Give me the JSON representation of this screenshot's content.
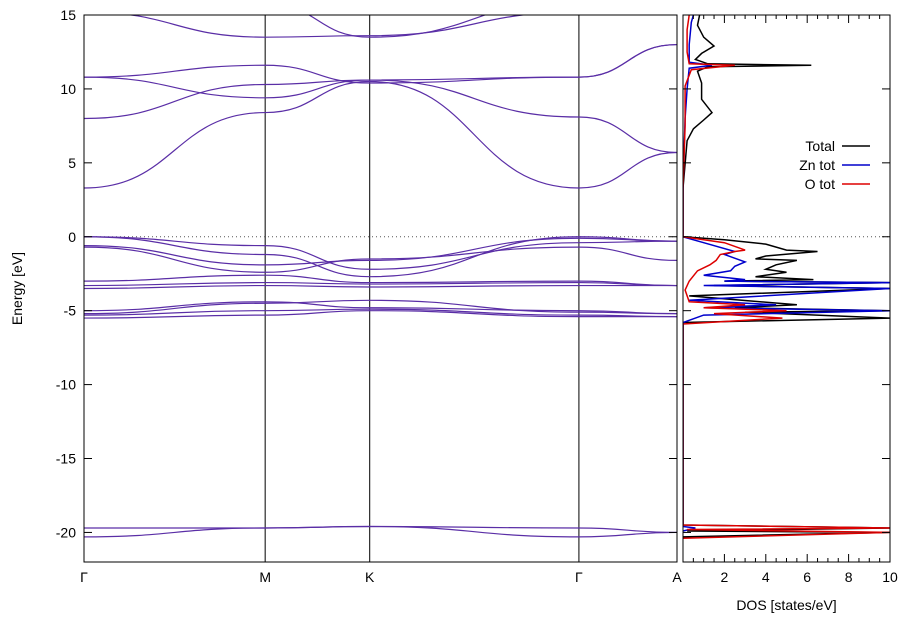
{
  "chart_data": [
    {
      "type": "line",
      "title": "",
      "ylabel": "Energy [eV]",
      "xlabel": "",
      "ylim": [
        -22,
        15
      ],
      "yticks": [
        15,
        10,
        5,
        0,
        -5,
        -10,
        -15,
        -20
      ],
      "ytick_labels": [
        "15",
        "10",
        "5",
        "0",
        "-5",
        "-10",
        "-15",
        "-20"
      ],
      "kpoints": [
        {
          "label": "Γ",
          "x": 0.0
        },
        {
          "label": "M",
          "x": 0.3055
        },
        {
          "label": "K",
          "x": 0.4818
        },
        {
          "label": "Γ",
          "x": 0.8346
        },
        {
          "label": "A",
          "x": 1.0
        }
      ],
      "fermi_level": 0,
      "line_color": "#5a2ea6",
      "bands": [
        {
          "x": [
            0,
            0.3055,
            0.4818,
            0.8346,
            1.0
          ],
          "y": [
            -20.3,
            -19.7,
            -19.6,
            -20.3,
            -20.0
          ]
        },
        {
          "x": [
            0,
            0.3055,
            0.4818,
            0.8346,
            1.0
          ],
          "y": [
            -19.7,
            -19.7,
            -19.6,
            -19.7,
            -20.0
          ]
        },
        {
          "x": [
            0,
            0.3055,
            0.4818,
            0.8346,
            1.0
          ],
          "y": [
            -5.5,
            -5.3,
            -5.0,
            -5.4,
            -5.4
          ]
        },
        {
          "x": [
            0,
            0.3055,
            0.4818,
            0.8346,
            1.0
          ],
          "y": [
            -5.3,
            -5.0,
            -4.9,
            -5.3,
            -5.4
          ]
        },
        {
          "x": [
            0,
            0.3055,
            0.4818,
            0.8346,
            1.0
          ],
          "y": [
            -5.2,
            -4.5,
            -4.3,
            -5.1,
            -5.2
          ]
        },
        {
          "x": [
            0,
            0.3055,
            0.4818,
            0.8346,
            1.0
          ],
          "y": [
            -5.0,
            -4.4,
            -4.8,
            -5.0,
            -5.2
          ]
        },
        {
          "x": [
            0,
            0.3055,
            0.4818,
            0.8346,
            1.0
          ],
          "y": [
            -3.5,
            -3.3,
            -3.4,
            -3.3,
            -3.3
          ]
        },
        {
          "x": [
            0,
            0.3055,
            0.4818,
            0.8346,
            1.0
          ],
          "y": [
            -3.3,
            -3.1,
            -3.2,
            -3.1,
            -3.3
          ]
        },
        {
          "x": [
            0,
            0.3055,
            0.4818,
            0.8346,
            1.0
          ],
          "y": [
            -3.0,
            -2.6,
            -3.1,
            -3.0,
            -3.3
          ]
        },
        {
          "x": [
            0,
            0.3055,
            0.4818,
            0.8346,
            1.0
          ],
          "y": [
            -0.7,
            -2.4,
            -1.5,
            -0.7,
            -1.6
          ]
        },
        {
          "x": [
            0,
            0.3055,
            0.4818,
            0.8346,
            1.0
          ],
          "y": [
            -0.6,
            -1.9,
            -1.6,
            -0.1,
            -0.3
          ]
        },
        {
          "x": [
            0,
            0.3055,
            0.4818,
            0.8346,
            1.0
          ],
          "y": [
            0.0,
            -1.2,
            -2.7,
            0.0,
            -0.3
          ]
        },
        {
          "x": [
            0,
            0.3055,
            0.4818,
            0.8346,
            1.0
          ],
          "y": [
            0.0,
            -0.6,
            -2.2,
            -0.4,
            -0.3
          ]
        },
        {
          "x": [
            0,
            0.3055,
            0.4818,
            0.8346,
            1.0
          ],
          "y": [
            3.3,
            8.4,
            10.5,
            3.3,
            5.7
          ]
        },
        {
          "x": [
            0,
            0.3055,
            0.4818,
            0.8346,
            1.0
          ],
          "y": [
            8.0,
            10.3,
            10.6,
            8.1,
            5.7
          ]
        },
        {
          "x": [
            0,
            0.3055,
            0.4818,
            0.8346,
            1.0
          ],
          "y": [
            10.8,
            9.4,
            10.6,
            10.8,
            13.0
          ]
        },
        {
          "x": [
            0,
            0.3055,
            0.4818,
            0.8346,
            1.0
          ],
          "y": [
            10.8,
            11.6,
            10.4,
            10.8,
            13.0
          ]
        },
        {
          "x": [
            0,
            0.3055,
            0.4818,
            0.8346,
            1.0
          ],
          "y": [
            15.2,
            13.5,
            13.6,
            15.2,
            15.2
          ]
        },
        {
          "x": [
            0,
            0.3055,
            0.4818,
            0.8346,
            1.0
          ],
          "y": [
            15.5,
            15.8,
            13.5,
            16.0,
            15.5
          ]
        }
      ]
    },
    {
      "type": "line",
      "title": "",
      "xlabel": "DOS [states/eV]",
      "ylabel": "",
      "xlim": [
        0,
        10
      ],
      "ylim": [
        -22,
        15
      ],
      "xticks": [
        2,
        4,
        6,
        8,
        10
      ],
      "xtick_labels": [
        "2",
        "4",
        "6",
        "8",
        "10"
      ],
      "legend_position": "right",
      "series": [
        {
          "name": "Total",
          "color": "#000000",
          "points": [
            [
              0,
              3.3
            ],
            [
              0.2,
              6.5
            ],
            [
              0.5,
              7.3
            ],
            [
              1,
              7.9
            ],
            [
              1.4,
              8.4
            ],
            [
              0.9,
              9.3
            ],
            [
              0.9,
              10.4
            ],
            [
              0.7,
              11.2
            ],
            [
              1.2,
              11.5
            ],
            [
              6.2,
              11.6
            ],
            [
              1.2,
              11.7
            ],
            [
              0.6,
              12.0
            ],
            [
              0.9,
              12.4
            ],
            [
              1.5,
              12.9
            ],
            [
              1.0,
              13.5
            ],
            [
              0.7,
              14.3
            ],
            [
              0.8,
              15.0
            ],
            [
              0,
              0
            ],
            [
              2,
              -0.2
            ],
            [
              4,
              -0.5
            ],
            [
              5,
              -0.9
            ],
            [
              6.5,
              -1.0
            ],
            [
              4,
              -1.3
            ],
            [
              3.5,
              -1.5
            ],
            [
              5.5,
              -1.6
            ],
            [
              4.5,
              -1.9
            ],
            [
              4,
              -2.2
            ],
            [
              5,
              -2.4
            ],
            [
              3.5,
              -2.7
            ],
            [
              6.3,
              -2.9
            ],
            [
              2,
              -3.0
            ],
            [
              10,
              -3.1
            ],
            [
              1.5,
              -3.3
            ],
            [
              10,
              -3.5
            ],
            [
              0.3,
              -4.0
            ],
            [
              5.5,
              -4.6
            ],
            [
              2.5,
              -4.8
            ],
            [
              10,
              -5.0
            ],
            [
              3,
              -5.1
            ],
            [
              10,
              -5.5
            ],
            [
              0,
              -5.8
            ],
            [
              0,
              -19.5
            ],
            [
              10,
              -19.7
            ],
            [
              0.2,
              -19.9
            ],
            [
              10,
              -20.0
            ],
            [
              0,
              -20.3
            ]
          ]
        },
        {
          "name": "Zn tot",
          "color": "#0000cc",
          "points": [
            [
              0,
              3.3
            ],
            [
              0.1,
              8.0
            ],
            [
              0.2,
              10.0
            ],
            [
              0.3,
              11.4
            ],
            [
              1.4,
              11.6
            ],
            [
              0.3,
              11.8
            ],
            [
              0.3,
              13.0
            ],
            [
              0.4,
              14.5
            ],
            [
              0.5,
              15.0
            ],
            [
              0,
              0
            ],
            [
              1,
              -0.4
            ],
            [
              2.5,
              -1.0
            ],
            [
              2,
              -1.2
            ],
            [
              3,
              -1.7
            ],
            [
              2.5,
              -2.0
            ],
            [
              2.3,
              -2.3
            ],
            [
              1,
              -2.6
            ],
            [
              3,
              -2.9
            ],
            [
              2,
              -3.0
            ],
            [
              10,
              -3.1
            ],
            [
              1,
              -3.3
            ],
            [
              10,
              -3.5
            ],
            [
              0.3,
              -4.3
            ],
            [
              4.5,
              -4.6
            ],
            [
              1,
              -4.8
            ],
            [
              10,
              -5.0
            ],
            [
              1,
              -5.3
            ],
            [
              0,
              -5.8
            ],
            [
              0,
              -19.6
            ],
            [
              0.6,
              -19.7
            ],
            [
              0,
              -19.9
            ]
          ]
        },
        {
          "name": "O tot",
          "color": "#dd0000",
          "points": [
            [
              0,
              3.3
            ],
            [
              0.1,
              7.5
            ],
            [
              0.1,
              10.2
            ],
            [
              0.4,
              11.3
            ],
            [
              2.5,
              11.6
            ],
            [
              0.3,
              11.7
            ],
            [
              0.2,
              12.5
            ],
            [
              0.2,
              14.0
            ],
            [
              0.3,
              15.0
            ],
            [
              0,
              0
            ],
            [
              2,
              -0.4
            ],
            [
              3,
              -0.9
            ],
            [
              2.5,
              -1.0
            ],
            [
              1.8,
              -1.2
            ],
            [
              1.6,
              -1.6
            ],
            [
              1.3,
              -1.9
            ],
            [
              0.7,
              -2.3
            ],
            [
              0.3,
              -3.0
            ],
            [
              0.1,
              -3.6
            ],
            [
              0.3,
              -4.4
            ],
            [
              3,
              -4.6
            ],
            [
              1,
              -4.8
            ],
            [
              5,
              -5.0
            ],
            [
              1.5,
              -5.2
            ],
            [
              4.8,
              -5.5
            ],
            [
              0,
              -5.9
            ],
            [
              0,
              -19.5
            ],
            [
              10,
              -19.7
            ],
            [
              0.2,
              -19.8
            ],
            [
              10,
              -20.0
            ],
            [
              0,
              -20.4
            ]
          ]
        }
      ]
    }
  ]
}
